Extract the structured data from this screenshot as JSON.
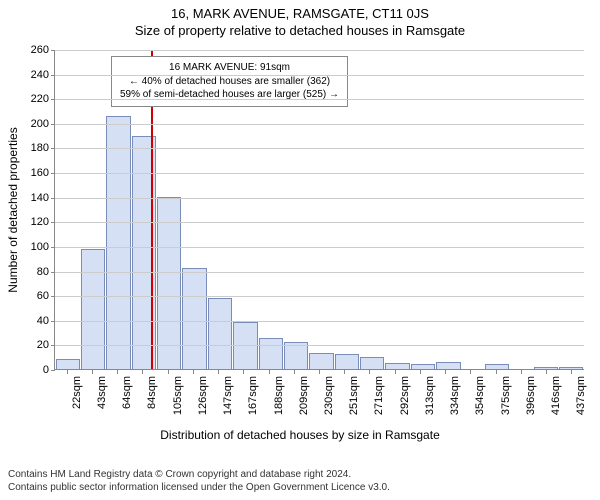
{
  "header": {
    "address": "16, MARK AVENUE, RAMSGATE, CT11 0JS",
    "subtitle": "Size of property relative to detached houses in Ramsgate"
  },
  "chart": {
    "type": "histogram",
    "y": {
      "label": "Number of detached properties",
      "min": 0,
      "max": 260,
      "tick_step": 20,
      "ticks": [
        0,
        20,
        40,
        60,
        80,
        100,
        120,
        140,
        160,
        180,
        200,
        220,
        240,
        260
      ],
      "grid_color": "#cccccc",
      "axis_color": "#888888"
    },
    "x": {
      "label": "Distribution of detached houses by size in Ramsgate",
      "ticks": [
        "22sqm",
        "43sqm",
        "64sqm",
        "84sqm",
        "105sqm",
        "126sqm",
        "147sqm",
        "167sqm",
        "188sqm",
        "209sqm",
        "230sqm",
        "251sqm",
        "271sqm",
        "292sqm",
        "313sqm",
        "334sqm",
        "354sqm",
        "375sqm",
        "396sqm",
        "416sqm",
        "437sqm"
      ]
    },
    "bars": {
      "values": [
        8,
        98,
        206,
        190,
        140,
        82,
        58,
        38,
        25,
        22,
        13,
        12,
        10,
        5,
        4,
        6,
        0,
        4,
        0,
        2,
        2
      ],
      "fill_color": "#d6e0f5",
      "border_color": "#7a8db8"
    },
    "marker": {
      "position_index": 3.3,
      "color": "#d00000"
    },
    "annotation": {
      "line1": "16 MARK AVENUE: 91sqm",
      "line2": "← 40% of detached houses are smaller (362)",
      "line3": "59% of semi-detached houses are larger (525) →",
      "border_color": "#888888",
      "background_color": "#ffffff",
      "font_size": 10
    },
    "label_fontsize": 12,
    "tick_fontsize": 11,
    "background_color": "#ffffff"
  },
  "footer": {
    "line1": "Contains HM Land Registry data © Crown copyright and database right 2024.",
    "line2": "Contains public sector information licensed under the Open Government Licence v3.0."
  }
}
